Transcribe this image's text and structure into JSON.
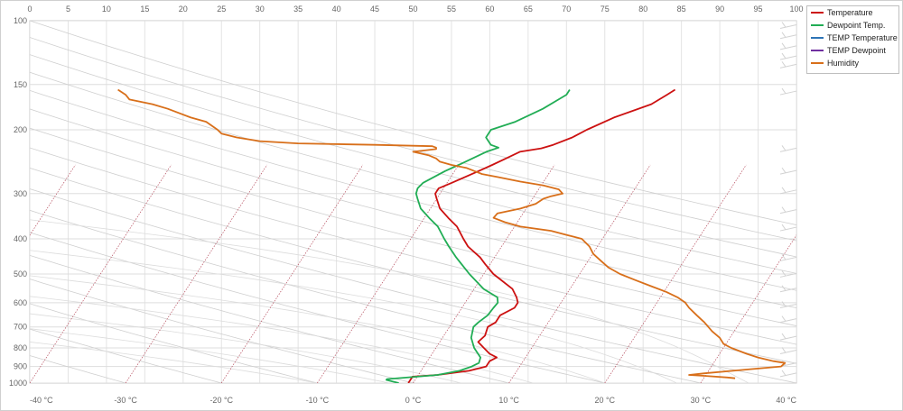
{
  "chart_data": {
    "type": "line",
    "title": "",
    "humidity_axis": {
      "ticks": [
        0,
        5,
        10,
        15,
        20,
        25,
        30,
        35,
        40,
        45,
        50,
        55,
        60,
        65,
        70,
        75,
        80,
        85,
        90,
        95,
        100
      ],
      "range": [
        0,
        100
      ]
    },
    "pressure_axis": {
      "ticks": [
        100,
        150,
        200,
        300,
        400,
        500,
        600,
        700,
        800,
        900,
        1000
      ],
      "scale": "log",
      "unit": "hPa"
    },
    "temperature_axis": {
      "ticks": [
        "-40 °C",
        "-30 °C",
        "-20 °C",
        "-10 °C",
        "0 °C",
        "10 °C",
        "20 °C",
        "30 °C",
        "40 °C"
      ],
      "range": [
        -40,
        40
      ]
    },
    "grid": true,
    "legend_position": "top-right",
    "series": [
      {
        "name": "Temperature",
        "color": "#cc1111",
        "axis": "temperature",
        "points": [
          [
            1000,
            -0.5
          ],
          [
            960,
            -0.5
          ],
          [
            950,
            2
          ],
          [
            925,
            5
          ],
          [
            900,
            6.5
          ],
          [
            870,
            6.5
          ],
          [
            850,
            7
          ],
          [
            830,
            6
          ],
          [
            800,
            5
          ],
          [
            770,
            4
          ],
          [
            740,
            4.3
          ],
          [
            700,
            4
          ],
          [
            680,
            4.5
          ],
          [
            650,
            4.5
          ],
          [
            620,
            5.5
          ],
          [
            600,
            5.5
          ],
          [
            580,
            5
          ],
          [
            550,
            4
          ],
          [
            500,
            1
          ],
          [
            470,
            -0.5
          ],
          [
            450,
            -1.5
          ],
          [
            420,
            -3.5
          ],
          [
            400,
            -4.5
          ],
          [
            370,
            -6
          ],
          [
            350,
            -7.5
          ],
          [
            330,
            -9
          ],
          [
            310,
            -10
          ],
          [
            300,
            -10.5
          ],
          [
            290,
            -10.5
          ],
          [
            280,
            -9.5
          ],
          [
            260,
            -7.5
          ],
          [
            250,
            -6.5
          ],
          [
            240,
            -5.5
          ],
          [
            230,
            -4.5
          ],
          [
            225,
            -2.5
          ],
          [
            220,
            -1.5
          ],
          [
            210,
            0
          ],
          [
            200,
            1
          ],
          [
            185,
            3
          ],
          [
            170,
            6
          ],
          [
            160,
            7
          ],
          [
            155,
            7.5
          ]
        ]
      },
      {
        "name": "Dewpoint Temp.",
        "color": "#21ad55",
        "axis": "temperature",
        "points": [
          [
            1000,
            -1.5
          ],
          [
            980,
            -3
          ],
          [
            975,
            -3
          ],
          [
            960,
            0
          ],
          [
            950,
            2
          ],
          [
            925,
            4
          ],
          [
            900,
            5
          ],
          [
            880,
            5.5
          ],
          [
            850,
            5.3
          ],
          [
            800,
            4
          ],
          [
            750,
            3
          ],
          [
            700,
            2.5
          ],
          [
            680,
            2.7
          ],
          [
            650,
            3.2
          ],
          [
            620,
            3.3
          ],
          [
            600,
            3.4
          ],
          [
            580,
            3
          ],
          [
            550,
            1
          ],
          [
            500,
            -1.5
          ],
          [
            450,
            -4
          ],
          [
            420,
            -5.5
          ],
          [
            400,
            -6.5
          ],
          [
            370,
            -8
          ],
          [
            350,
            -9.5
          ],
          [
            330,
            -11
          ],
          [
            310,
            -12
          ],
          [
            300,
            -12.5
          ],
          [
            290,
            -12.7
          ],
          [
            280,
            -12.5
          ],
          [
            260,
            -11
          ],
          [
            250,
            -10
          ],
          [
            240,
            -9
          ],
          [
            230,
            -8
          ],
          [
            224,
            -7
          ],
          [
            220,
            -8
          ],
          [
            210,
            -9
          ],
          [
            200,
            -9
          ],
          [
            190,
            -7
          ],
          [
            175,
            -5
          ],
          [
            165,
            -4
          ],
          [
            160,
            -3.5
          ],
          [
            155,
            -3.5
          ]
        ]
      },
      {
        "name": "TEMP Temperature",
        "color": "#2e75b6",
        "axis": "temperature",
        "points": []
      },
      {
        "name": "TEMP Dewpoint",
        "color": "#7030a0",
        "axis": "temperature",
        "points": []
      },
      {
        "name": "Humidity",
        "color": "#d86f1a",
        "axis": "humidity",
        "points": [
          [
            155,
            11.5
          ],
          [
            160,
            12.5
          ],
          [
            165,
            13
          ],
          [
            170,
            16
          ],
          [
            175,
            18
          ],
          [
            185,
            21
          ],
          [
            190,
            23
          ],
          [
            200,
            24.5
          ],
          [
            205,
            25
          ],
          [
            210,
            27
          ],
          [
            215,
            30
          ],
          [
            218,
            35
          ],
          [
            220,
            45
          ],
          [
            222,
            52.5
          ],
          [
            224,
            53
          ],
          [
            226,
            53
          ],
          [
            230,
            50
          ],
          [
            235,
            52
          ],
          [
            240,
            53
          ],
          [
            245,
            53.5
          ],
          [
            250,
            55
          ],
          [
            255,
            57
          ],
          [
            260,
            58
          ],
          [
            265,
            59
          ],
          [
            270,
            61
          ],
          [
            278,
            64
          ],
          [
            285,
            67
          ],
          [
            292,
            69
          ],
          [
            300,
            69.5
          ],
          [
            305,
            68
          ],
          [
            310,
            67
          ],
          [
            320,
            66
          ],
          [
            330,
            64
          ],
          [
            340,
            61
          ],
          [
            350,
            60.5
          ],
          [
            360,
            62
          ],
          [
            370,
            64
          ],
          [
            380,
            68
          ],
          [
            390,
            70
          ],
          [
            400,
            72
          ],
          [
            420,
            73
          ],
          [
            440,
            73.5
          ],
          [
            460,
            74.5
          ],
          [
            480,
            75.5
          ],
          [
            500,
            77
          ],
          [
            520,
            79
          ],
          [
            540,
            81
          ],
          [
            560,
            83
          ],
          [
            580,
            84.5
          ],
          [
            600,
            85.5
          ],
          [
            620,
            86
          ],
          [
            650,
            87
          ],
          [
            680,
            88
          ],
          [
            700,
            88.5
          ],
          [
            720,
            89
          ],
          [
            750,
            90
          ],
          [
            780,
            90.5
          ],
          [
            800,
            91.5
          ],
          [
            830,
            93.5
          ],
          [
            850,
            95
          ],
          [
            870,
            97
          ],
          [
            880,
            98.5
          ],
          [
            900,
            98
          ],
          [
            920,
            93
          ],
          [
            940,
            88
          ],
          [
            950,
            86
          ],
          [
            955,
            88
          ],
          [
            965,
            91
          ],
          [
            970,
            92
          ]
        ]
      }
    ]
  }
}
